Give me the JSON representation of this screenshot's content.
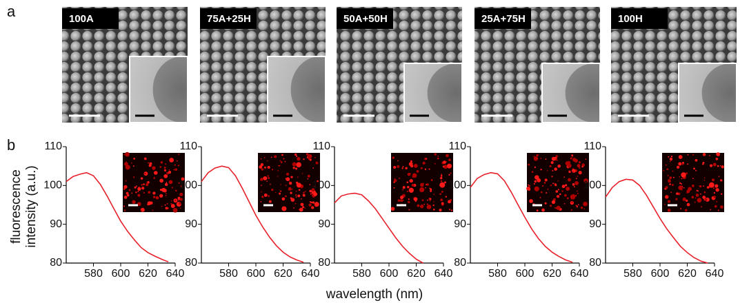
{
  "panel_labels": [
    "a",
    "b"
  ],
  "images": [
    {
      "label": "100A"
    },
    {
      "label": "75A+25H"
    },
    {
      "label": "50A+50H"
    },
    {
      "label": "25A+75H"
    },
    {
      "label": "100H"
    }
  ],
  "xlabel": "wavelength (nm)",
  "ylabel": [
    "fluorescence",
    "intensity (a.u.)"
  ],
  "chart_data": [
    {
      "type": "line",
      "x": [
        560,
        565,
        570,
        575,
        580,
        585,
        590,
        595,
        600,
        605,
        610,
        615,
        620,
        625,
        630,
        635
      ],
      "series": [
        {
          "color": "#e8202a",
          "values": [
            101,
            102.3,
            102.9,
            103.3,
            102.5,
            100.3,
            97.3,
            94,
            90.8,
            88.2,
            86,
            84,
            82.7,
            81.8,
            81,
            80.3
          ]
        }
      ],
      "xlim": [
        560,
        640
      ],
      "ylim": [
        80,
        110
      ],
      "xticks": [
        580,
        600,
        620,
        640
      ],
      "yticks": [
        80,
        90,
        100,
        110
      ]
    },
    {
      "type": "line",
      "x": [
        560,
        565,
        570,
        575,
        580,
        585,
        590,
        595,
        600,
        605,
        610,
        615,
        620,
        625,
        630,
        635
      ],
      "series": [
        {
          "color": "#e8202a",
          "values": [
            101,
            103.3,
            104.5,
            105,
            104.6,
            102.5,
            99.3,
            95.8,
            92.3,
            89.3,
            86.7,
            84.5,
            82.8,
            81.6,
            80.8,
            80.2
          ]
        }
      ],
      "xlim": [
        560,
        640
      ],
      "ylim": [
        80,
        110
      ],
      "xticks": [
        580,
        600,
        620,
        640
      ],
      "yticks": [
        80,
        90,
        100,
        110
      ]
    },
    {
      "type": "line",
      "x": [
        560,
        565,
        570,
        575,
        580,
        585,
        590,
        595,
        600,
        605,
        610,
        615,
        620,
        625
      ],
      "series": [
        {
          "color": "#e8202a",
          "values": [
            95.5,
            97.3,
            97.8,
            98,
            97.6,
            96,
            94,
            91.5,
            89,
            86.5,
            84.3,
            82.5,
            81,
            80
          ]
        }
      ],
      "xlim": [
        560,
        640
      ],
      "ylim": [
        80,
        110
      ],
      "xticks": [
        580,
        600,
        620,
        640
      ],
      "yticks": [
        80,
        90,
        100,
        110
      ]
    },
    {
      "type": "line",
      "x": [
        560,
        565,
        570,
        575,
        580,
        585,
        590,
        595,
        600,
        605,
        610,
        615,
        620,
        625,
        630,
        635
      ],
      "series": [
        {
          "color": "#e8202a",
          "values": [
            99.5,
            101.8,
            102.8,
            103.3,
            103,
            101.2,
            98.3,
            95,
            91.8,
            88.8,
            86.3,
            84.3,
            82.8,
            81.7,
            80.8,
            80.2
          ]
        }
      ],
      "xlim": [
        560,
        640
      ],
      "ylim": [
        80,
        110
      ],
      "xticks": [
        580,
        600,
        620,
        640
      ],
      "yticks": [
        80,
        90,
        100,
        110
      ]
    },
    {
      "type": "line",
      "x": [
        560,
        565,
        570,
        575,
        580,
        585,
        590,
        595,
        600,
        605,
        610,
        615,
        620,
        625,
        630,
        635
      ],
      "series": [
        {
          "color": "#e8202a",
          "values": [
            97,
            99.5,
            101,
            101.6,
            101.4,
            100,
            97.5,
            94.5,
            91.5,
            88.8,
            86.5,
            84.3,
            82.7,
            81.4,
            80.5,
            80
          ]
        }
      ],
      "xlim": [
        560,
        640
      ],
      "ylim": [
        80,
        110
      ],
      "xticks": [
        580,
        600,
        620,
        640
      ],
      "yticks": [
        80,
        90,
        100,
        110
      ]
    }
  ]
}
